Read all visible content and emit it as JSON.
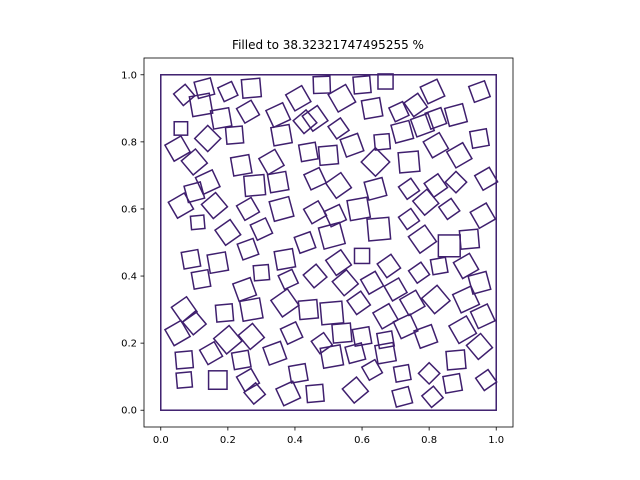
{
  "chart_data": {
    "type": "scatter",
    "title": "Filled to 38.32321747495255 %",
    "xlabel": "",
    "ylabel": "",
    "xlim": [
      -0.05,
      1.05
    ],
    "ylim": [
      -0.05,
      1.05
    ],
    "xticks": [
      "0.0",
      "0.2",
      "0.4",
      "0.6",
      "0.8",
      "1.0"
    ],
    "yticks": [
      "0.0",
      "0.2",
      "0.4",
      "0.6",
      "0.8",
      "1.0"
    ],
    "grid": false,
    "container": {
      "x": [
        0,
        1
      ],
      "y": [
        0,
        1
      ]
    },
    "mark_shape": "rotated-square",
    "color": "#3f1f6e",
    "squares": [
      {
        "x": 0.07,
        "y": 0.94,
        "s": 0.045,
        "a": 40
      },
      {
        "x": 0.13,
        "y": 0.96,
        "s": 0.05,
        "a": 15
      },
      {
        "x": 0.2,
        "y": 0.95,
        "s": 0.045,
        "a": 25
      },
      {
        "x": 0.27,
        "y": 0.96,
        "s": 0.055,
        "a": 5
      },
      {
        "x": 0.41,
        "y": 0.93,
        "s": 0.055,
        "a": 30
      },
      {
        "x": 0.48,
        "y": 0.97,
        "s": 0.05,
        "a": 2
      },
      {
        "x": 0.54,
        "y": 0.93,
        "s": 0.06,
        "a": 30
      },
      {
        "x": 0.6,
        "y": 0.97,
        "s": 0.05,
        "a": 5
      },
      {
        "x": 0.67,
        "y": 0.98,
        "s": 0.045,
        "a": 0
      },
      {
        "x": 0.81,
        "y": 0.95,
        "s": 0.055,
        "a": 25
      },
      {
        "x": 0.95,
        "y": 0.95,
        "s": 0.05,
        "a": 20
      },
      {
        "x": 0.12,
        "y": 0.91,
        "s": 0.06,
        "a": 10
      },
      {
        "x": 0.18,
        "y": 0.87,
        "s": 0.055,
        "a": 10
      },
      {
        "x": 0.26,
        "y": 0.89,
        "s": 0.05,
        "a": 30
      },
      {
        "x": 0.35,
        "y": 0.88,
        "s": 0.055,
        "a": 25
      },
      {
        "x": 0.46,
        "y": 0.87,
        "s": 0.055,
        "a": 35
      },
      {
        "x": 0.53,
        "y": 0.84,
        "s": 0.045,
        "a": 35
      },
      {
        "x": 0.63,
        "y": 0.9,
        "s": 0.055,
        "a": 10
      },
      {
        "x": 0.71,
        "y": 0.89,
        "s": 0.045,
        "a": 25
      },
      {
        "x": 0.76,
        "y": 0.91,
        "s": 0.05,
        "a": 35
      },
      {
        "x": 0.88,
        "y": 0.88,
        "s": 0.055,
        "a": 15
      },
      {
        "x": 0.06,
        "y": 0.84,
        "s": 0.04,
        "a": 0
      },
      {
        "x": 0.14,
        "y": 0.81,
        "s": 0.055,
        "a": 45
      },
      {
        "x": 0.22,
        "y": 0.82,
        "s": 0.05,
        "a": 5
      },
      {
        "x": 0.36,
        "y": 0.82,
        "s": 0.055,
        "a": 10
      },
      {
        "x": 0.44,
        "y": 0.77,
        "s": 0.05,
        "a": 10
      },
      {
        "x": 0.5,
        "y": 0.76,
        "s": 0.055,
        "a": 5
      },
      {
        "x": 0.57,
        "y": 0.79,
        "s": 0.055,
        "a": 20
      },
      {
        "x": 0.66,
        "y": 0.8,
        "s": 0.045,
        "a": 5
      },
      {
        "x": 0.72,
        "y": 0.83,
        "s": 0.055,
        "a": 15
      },
      {
        "x": 0.78,
        "y": 0.85,
        "s": 0.055,
        "a": 20
      },
      {
        "x": 0.82,
        "y": 0.79,
        "s": 0.055,
        "a": 30
      },
      {
        "x": 0.95,
        "y": 0.81,
        "s": 0.05,
        "a": 10
      },
      {
        "x": 0.05,
        "y": 0.78,
        "s": 0.055,
        "a": 30
      },
      {
        "x": 0.1,
        "y": 0.74,
        "s": 0.055,
        "a": 40
      },
      {
        "x": 0.24,
        "y": 0.73,
        "s": 0.055,
        "a": 10
      },
      {
        "x": 0.33,
        "y": 0.74,
        "s": 0.055,
        "a": 30
      },
      {
        "x": 0.46,
        "y": 0.69,
        "s": 0.05,
        "a": 25
      },
      {
        "x": 0.53,
        "y": 0.67,
        "s": 0.055,
        "a": 35
      },
      {
        "x": 0.64,
        "y": 0.66,
        "s": 0.055,
        "a": 15
      },
      {
        "x": 0.64,
        "y": 0.74,
        "s": 0.06,
        "a": 45
      },
      {
        "x": 0.74,
        "y": 0.74,
        "s": 0.06,
        "a": 5
      },
      {
        "x": 0.89,
        "y": 0.76,
        "s": 0.055,
        "a": 30
      },
      {
        "x": 0.97,
        "y": 0.69,
        "s": 0.05,
        "a": 30
      },
      {
        "x": 0.1,
        "y": 0.65,
        "s": 0.05,
        "a": 15
      },
      {
        "x": 0.14,
        "y": 0.68,
        "s": 0.055,
        "a": 25
      },
      {
        "x": 0.28,
        "y": 0.67,
        "s": 0.06,
        "a": 5
      },
      {
        "x": 0.35,
        "y": 0.68,
        "s": 0.055,
        "a": 10
      },
      {
        "x": 0.06,
        "y": 0.61,
        "s": 0.055,
        "a": 30
      },
      {
        "x": 0.16,
        "y": 0.61,
        "s": 0.055,
        "a": 40
      },
      {
        "x": 0.26,
        "y": 0.6,
        "s": 0.05,
        "a": 30
      },
      {
        "x": 0.36,
        "y": 0.6,
        "s": 0.06,
        "a": 15
      },
      {
        "x": 0.46,
        "y": 0.59,
        "s": 0.05,
        "a": 30
      },
      {
        "x": 0.52,
        "y": 0.58,
        "s": 0.05,
        "a": 25
      },
      {
        "x": 0.59,
        "y": 0.6,
        "s": 0.06,
        "a": 10
      },
      {
        "x": 0.74,
        "y": 0.66,
        "s": 0.045,
        "a": 35
      },
      {
        "x": 0.79,
        "y": 0.62,
        "s": 0.055,
        "a": 40
      },
      {
        "x": 0.82,
        "y": 0.67,
        "s": 0.05,
        "a": 35
      },
      {
        "x": 0.88,
        "y": 0.68,
        "s": 0.045,
        "a": 45
      },
      {
        "x": 0.86,
        "y": 0.6,
        "s": 0.045,
        "a": 35
      },
      {
        "x": 0.96,
        "y": 0.58,
        "s": 0.055,
        "a": 30
      },
      {
        "x": 0.11,
        "y": 0.56,
        "s": 0.04,
        "a": 5
      },
      {
        "x": 0.2,
        "y": 0.53,
        "s": 0.055,
        "a": 35
      },
      {
        "x": 0.3,
        "y": 0.54,
        "s": 0.05,
        "a": 25
      },
      {
        "x": 0.43,
        "y": 0.5,
        "s": 0.05,
        "a": 20
      },
      {
        "x": 0.51,
        "y": 0.52,
        "s": 0.065,
        "a": 15
      },
      {
        "x": 0.65,
        "y": 0.54,
        "s": 0.065,
        "a": 5
      },
      {
        "x": 0.74,
        "y": 0.57,
        "s": 0.045,
        "a": 35
      },
      {
        "x": 0.78,
        "y": 0.51,
        "s": 0.06,
        "a": 35
      },
      {
        "x": 0.86,
        "y": 0.49,
        "s": 0.065,
        "a": 0
      },
      {
        "x": 0.92,
        "y": 0.51,
        "s": 0.055,
        "a": 5
      },
      {
        "x": 0.26,
        "y": 0.48,
        "s": 0.05,
        "a": 20
      },
      {
        "x": 0.09,
        "y": 0.45,
        "s": 0.05,
        "a": 10
      },
      {
        "x": 0.17,
        "y": 0.44,
        "s": 0.055,
        "a": 10
      },
      {
        "x": 0.37,
        "y": 0.45,
        "s": 0.055,
        "a": 10
      },
      {
        "x": 0.53,
        "y": 0.44,
        "s": 0.055,
        "a": 35
      },
      {
        "x": 0.6,
        "y": 0.46,
        "s": 0.045,
        "a": 0
      },
      {
        "x": 0.68,
        "y": 0.43,
        "s": 0.05,
        "a": 35
      },
      {
        "x": 0.77,
        "y": 0.41,
        "s": 0.045,
        "a": 35
      },
      {
        "x": 0.83,
        "y": 0.43,
        "s": 0.045,
        "a": 10
      },
      {
        "x": 0.91,
        "y": 0.43,
        "s": 0.055,
        "a": 30
      },
      {
        "x": 0.12,
        "y": 0.39,
        "s": 0.05,
        "a": 10
      },
      {
        "x": 0.3,
        "y": 0.41,
        "s": 0.045,
        "a": 5
      },
      {
        "x": 0.38,
        "y": 0.39,
        "s": 0.045,
        "a": 25
      },
      {
        "x": 0.46,
        "y": 0.4,
        "s": 0.05,
        "a": 40
      },
      {
        "x": 0.55,
        "y": 0.38,
        "s": 0.055,
        "a": 40
      },
      {
        "x": 0.63,
        "y": 0.38,
        "s": 0.05,
        "a": 30
      },
      {
        "x": 0.7,
        "y": 0.36,
        "s": 0.05,
        "a": 30
      },
      {
        "x": 0.95,
        "y": 0.38,
        "s": 0.055,
        "a": 15
      },
      {
        "x": 0.25,
        "y": 0.36,
        "s": 0.055,
        "a": 20
      },
      {
        "x": 0.37,
        "y": 0.32,
        "s": 0.06,
        "a": 35
      },
      {
        "x": 0.44,
        "y": 0.3,
        "s": 0.055,
        "a": 5
      },
      {
        "x": 0.51,
        "y": 0.29,
        "s": 0.065,
        "a": 5
      },
      {
        "x": 0.59,
        "y": 0.32,
        "s": 0.05,
        "a": 35
      },
      {
        "x": 0.67,
        "y": 0.28,
        "s": 0.055,
        "a": 30
      },
      {
        "x": 0.75,
        "y": 0.32,
        "s": 0.055,
        "a": 30
      },
      {
        "x": 0.82,
        "y": 0.33,
        "s": 0.06,
        "a": 40
      },
      {
        "x": 0.91,
        "y": 0.33,
        "s": 0.06,
        "a": 25
      },
      {
        "x": 0.96,
        "y": 0.28,
        "s": 0.055,
        "a": 25
      },
      {
        "x": 0.07,
        "y": 0.3,
        "s": 0.055,
        "a": 35
      },
      {
        "x": 0.19,
        "y": 0.29,
        "s": 0.05,
        "a": 5
      },
      {
        "x": 0.27,
        "y": 0.3,
        "s": 0.06,
        "a": 10
      },
      {
        "x": 0.1,
        "y": 0.26,
        "s": 0.05,
        "a": 40
      },
      {
        "x": 0.05,
        "y": 0.23,
        "s": 0.055,
        "a": 30
      },
      {
        "x": 0.2,
        "y": 0.21,
        "s": 0.06,
        "a": 40
      },
      {
        "x": 0.27,
        "y": 0.22,
        "s": 0.055,
        "a": 40
      },
      {
        "x": 0.39,
        "y": 0.23,
        "s": 0.05,
        "a": 25
      },
      {
        "x": 0.48,
        "y": 0.2,
        "s": 0.045,
        "a": 35
      },
      {
        "x": 0.54,
        "y": 0.23,
        "s": 0.055,
        "a": 5
      },
      {
        "x": 0.6,
        "y": 0.22,
        "s": 0.05,
        "a": 10
      },
      {
        "x": 0.67,
        "y": 0.21,
        "s": 0.045,
        "a": 10
      },
      {
        "x": 0.73,
        "y": 0.25,
        "s": 0.055,
        "a": 25
      },
      {
        "x": 0.79,
        "y": 0.22,
        "s": 0.055,
        "a": 20
      },
      {
        "x": 0.9,
        "y": 0.24,
        "s": 0.06,
        "a": 30
      },
      {
        "x": 0.95,
        "y": 0.19,
        "s": 0.055,
        "a": 40
      },
      {
        "x": 0.15,
        "y": 0.17,
        "s": 0.05,
        "a": 30
      },
      {
        "x": 0.24,
        "y": 0.15,
        "s": 0.05,
        "a": 10
      },
      {
        "x": 0.34,
        "y": 0.17,
        "s": 0.055,
        "a": 20
      },
      {
        "x": 0.51,
        "y": 0.16,
        "s": 0.06,
        "a": 10
      },
      {
        "x": 0.58,
        "y": 0.17,
        "s": 0.05,
        "a": 15
      },
      {
        "x": 0.67,
        "y": 0.17,
        "s": 0.055,
        "a": 10
      },
      {
        "x": 0.88,
        "y": 0.15,
        "s": 0.055,
        "a": 5
      },
      {
        "x": 0.07,
        "y": 0.15,
        "s": 0.05,
        "a": 5
      },
      {
        "x": 0.07,
        "y": 0.09,
        "s": 0.045,
        "a": 5
      },
      {
        "x": 0.17,
        "y": 0.09,
        "s": 0.055,
        "a": 0
      },
      {
        "x": 0.26,
        "y": 0.09,
        "s": 0.05,
        "a": 30
      },
      {
        "x": 0.41,
        "y": 0.11,
        "s": 0.05,
        "a": 10
      },
      {
        "x": 0.63,
        "y": 0.12,
        "s": 0.045,
        "a": 30
      },
      {
        "x": 0.72,
        "y": 0.11,
        "s": 0.045,
        "a": 10
      },
      {
        "x": 0.8,
        "y": 0.11,
        "s": 0.045,
        "a": 45
      },
      {
        "x": 0.87,
        "y": 0.08,
        "s": 0.05,
        "a": 10
      },
      {
        "x": 0.97,
        "y": 0.09,
        "s": 0.045,
        "a": 35
      },
      {
        "x": 0.28,
        "y": 0.05,
        "s": 0.045,
        "a": 40
      },
      {
        "x": 0.38,
        "y": 0.05,
        "s": 0.055,
        "a": 25
      },
      {
        "x": 0.46,
        "y": 0.05,
        "s": 0.05,
        "a": 5
      },
      {
        "x": 0.58,
        "y": 0.06,
        "s": 0.055,
        "a": 40
      },
      {
        "x": 0.72,
        "y": 0.04,
        "s": 0.05,
        "a": 15
      },
      {
        "x": 0.81,
        "y": 0.04,
        "s": 0.045,
        "a": 40
      },
      {
        "x": 0.82,
        "y": 0.87,
        "s": 0.05,
        "a": 20
      },
      {
        "x": 0.43,
        "y": 0.86,
        "s": 0.05,
        "a": 40
      }
    ]
  }
}
